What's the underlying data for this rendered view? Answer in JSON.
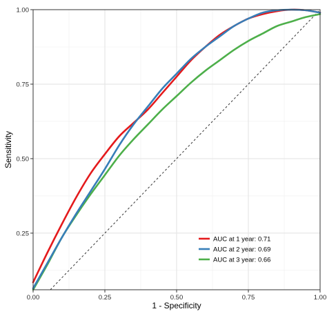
{
  "chart_data": {
    "type": "line",
    "title": "",
    "xlabel": "1 - Specificity",
    "ylabel": "Sensitivity",
    "xlim": [
      0.0,
      1.0
    ],
    "ylim": [
      0.06,
      1.0
    ],
    "grid": true,
    "legend_position": "bottom-right",
    "x_ticks": [
      {
        "value": 0.0,
        "label": "0.00"
      },
      {
        "value": 0.25,
        "label": "0.25"
      },
      {
        "value": 0.5,
        "label": "0.50"
      },
      {
        "value": 0.75,
        "label": "0.75"
      },
      {
        "value": 1.0,
        "label": "1.00"
      }
    ],
    "y_ticks": [
      {
        "value": 0.25,
        "label": "0.25"
      },
      {
        "value": 0.5,
        "label": "0.50"
      },
      {
        "value": 0.75,
        "label": "0.75"
      },
      {
        "value": 1.0,
        "label": "1.00"
      }
    ],
    "reference_line": {
      "x": [
        0,
        1
      ],
      "y": [
        0,
        1
      ],
      "style": "dashed",
      "color": "#333333"
    },
    "series": [
      {
        "name": "AUC at 1 year: 0.71",
        "color": "#e41a1c",
        "x": [
          0.0,
          0.05,
          0.1,
          0.15,
          0.2,
          0.25,
          0.3,
          0.35,
          0.4,
          0.45,
          0.5,
          0.55,
          0.6,
          0.65,
          0.7,
          0.75,
          0.8,
          0.85,
          0.9,
          0.95,
          1.0
        ],
        "y": [
          0.085,
          0.185,
          0.28,
          0.37,
          0.45,
          0.515,
          0.575,
          0.62,
          0.665,
          0.72,
          0.775,
          0.83,
          0.875,
          0.915,
          0.945,
          0.97,
          0.985,
          0.995,
          1.0,
          0.998,
          0.99
        ]
      },
      {
        "name": "AUC at 2 year: 0.69",
        "color": "#377eb8",
        "x": [
          0.0,
          0.05,
          0.1,
          0.15,
          0.2,
          0.25,
          0.3,
          0.35,
          0.4,
          0.45,
          0.5,
          0.55,
          0.6,
          0.65,
          0.7,
          0.75,
          0.8,
          0.85,
          0.9,
          0.95,
          1.0
        ],
        "y": [
          0.065,
          0.15,
          0.235,
          0.315,
          0.39,
          0.465,
          0.545,
          0.615,
          0.675,
          0.735,
          0.785,
          0.835,
          0.875,
          0.91,
          0.945,
          0.97,
          0.99,
          0.998,
          1.0,
          0.998,
          0.99
        ]
      },
      {
        "name": "AUC at 3 year: 0.66",
        "color": "#4daf4a",
        "x": [
          0.0,
          0.05,
          0.1,
          0.15,
          0.2,
          0.25,
          0.3,
          0.35,
          0.4,
          0.45,
          0.5,
          0.55,
          0.6,
          0.65,
          0.7,
          0.75,
          0.8,
          0.85,
          0.9,
          0.95,
          1.0
        ],
        "y": [
          0.06,
          0.145,
          0.235,
          0.31,
          0.38,
          0.445,
          0.51,
          0.565,
          0.615,
          0.665,
          0.71,
          0.755,
          0.795,
          0.83,
          0.865,
          0.895,
          0.92,
          0.945,
          0.96,
          0.975,
          0.985
        ]
      }
    ]
  }
}
